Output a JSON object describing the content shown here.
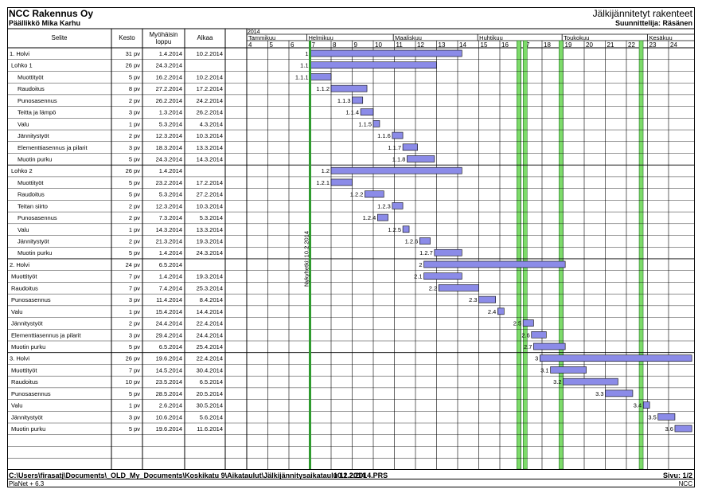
{
  "header": {
    "company": "NCC Rakennus Oy",
    "manager": "Päällikkö Mika Karhu",
    "title": "Jälkijännitetyt rakenteet",
    "planner": "Suunnittelija: Räsänen"
  },
  "footer": {
    "path": "C:\\Users\\firasatj\\Documents\\_OLD_My_Documents\\Koskikatu 9\\Aikataulut\\Jälkijännitysaikataulu 11.2.2014.PRS",
    "date": "10.2.2014",
    "page": "Sivu: 1/2",
    "program": "PlaNet + 6.3",
    "company_short": "NCC"
  },
  "chart_data": {
    "type": "gantt",
    "columns": {
      "task": "Selite",
      "duration": "Kesto",
      "late_end": "Myöhäisin loppu",
      "start": "Alkaa"
    },
    "year": "2014",
    "months": [
      "Tammikuu",
      "Helmikuu",
      "Maaliskuu",
      "Huhtikuu",
      "Toukokuu",
      "Kesäkuu"
    ],
    "weeks": [
      "4",
      "5",
      "6",
      "7",
      "8",
      "9",
      "10",
      "11",
      "12",
      "13",
      "14",
      "15",
      "16",
      "17",
      "18",
      "19",
      "20",
      "21",
      "22",
      "23",
      "24"
    ],
    "today_label": "Nykyhetki: 10.2.2014",
    "rows": [
      {
        "task": "1. Holvi",
        "level": 0,
        "duration": "31 pv",
        "late_end": "1.4.2014",
        "start": "10.2.2014",
        "code": "1",
        "bar": [
          7.0,
          14.2
        ]
      },
      {
        "task": "Lohko 1",
        "level": 1,
        "duration": "26 pv",
        "late_end": "24.3.2014",
        "start": "",
        "code": "1.1",
        "bar": [
          7.0,
          13.0
        ]
      },
      {
        "task": "Muottityöt",
        "level": 2,
        "duration": "5 pv",
        "late_end": "16.2.2014",
        "start": "10.2.2014",
        "code": "1.1.1",
        "bar": [
          7.0,
          8.0
        ]
      },
      {
        "task": "Raudoitus",
        "level": 2,
        "duration": "8 pv",
        "late_end": "27.2.2014",
        "start": "17.2.2014",
        "code": "1.1.2",
        "bar": [
          8.0,
          9.7
        ]
      },
      {
        "task": "Punosasennus",
        "level": 2,
        "duration": "2 pv",
        "late_end": "26.2.2014",
        "start": "24.2.2014",
        "code": "1.1.3",
        "bar": [
          9.0,
          9.5
        ]
      },
      {
        "task": "Teitta ja lämpö",
        "level": 2,
        "duration": "3 pv",
        "late_end": "1.3.2014",
        "start": "26.2.2014",
        "code": "1.1.4",
        "bar": [
          9.4,
          10.0
        ]
      },
      {
        "task": "Valu",
        "level": 2,
        "duration": "1 pv",
        "late_end": "5.3.2014",
        "start": "4.3.2014",
        "code": "1.1.5",
        "bar": [
          10.0,
          10.3
        ]
      },
      {
        "task": "Jännitystyöt",
        "level": 2,
        "duration": "2 pv",
        "late_end": "12.3.2014",
        "start": "10.3.2014",
        "code": "1.1.6",
        "bar": [
          10.9,
          11.4
        ]
      },
      {
        "task": "Elementtiasennus ja pilarit",
        "level": 2,
        "duration": "3 pv",
        "late_end": "18.3.2014",
        "start": "13.3.2014",
        "code": "1.1.7",
        "bar": [
          11.4,
          12.1
        ]
      },
      {
        "task": "Muotin purku",
        "level": 2,
        "duration": "5 pv",
        "late_end": "24.3.2014",
        "start": "14.3.2014",
        "code": "1.1.8",
        "bar": [
          11.6,
          12.9
        ]
      },
      {
        "task": "Lohko 2",
        "level": 1,
        "duration": "26 pv",
        "late_end": "1.4.2014",
        "start": "",
        "code": "1.2",
        "bar": [
          8.0,
          14.2
        ]
      },
      {
        "task": "Muottityöt",
        "level": 2,
        "duration": "5 pv",
        "late_end": "23.2.2014",
        "start": "17.2.2014",
        "code": "1.2.1",
        "bar": [
          8.0,
          9.0
        ]
      },
      {
        "task": "Raudoitus",
        "level": 2,
        "duration": "5 pv",
        "late_end": "5.3.2014",
        "start": "27.2.2014",
        "code": "1.2.2",
        "bar": [
          9.6,
          10.5
        ]
      },
      {
        "task": "Teitan siirto",
        "level": 2,
        "duration": "2 pv",
        "late_end": "12.3.2014",
        "start": "10.3.2014",
        "code": "1.2.3",
        "bar": [
          10.9,
          11.4
        ]
      },
      {
        "task": "Punosasennus",
        "level": 2,
        "duration": "2 pv",
        "late_end": "7.3.2014",
        "start": "5.3.2014",
        "code": "1.2.4",
        "bar": [
          10.2,
          10.7
        ]
      },
      {
        "task": "Valu",
        "level": 2,
        "duration": "1 pv",
        "late_end": "14.3.2014",
        "start": "13.3.2014",
        "code": "1.2.5",
        "bar": [
          11.4,
          11.7
        ]
      },
      {
        "task": "Jännitystyöt",
        "level": 2,
        "duration": "2 pv",
        "late_end": "21.3.2014",
        "start": "19.3.2014",
        "code": "1.2.6",
        "bar": [
          12.2,
          12.7
        ]
      },
      {
        "task": "Muotin purku",
        "level": 2,
        "duration": "5 pv",
        "late_end": "1.4.2014",
        "start": "24.3.2014",
        "code": "1.2.7",
        "bar": [
          12.9,
          14.2
        ]
      },
      {
        "task": "2. Holvi",
        "level": 0,
        "duration": "24 pv",
        "late_end": "6.5.2014",
        "start": "",
        "code": "2",
        "bar": [
          12.4,
          19.1
        ]
      },
      {
        "task": "Muottityöt",
        "level": 1,
        "duration": "7 pv",
        "late_end": "1.4.2014",
        "start": "19.3.2014",
        "code": "2.1",
        "bar": [
          12.4,
          14.2
        ]
      },
      {
        "task": "Raudoitus",
        "level": 1,
        "duration": "7 pv",
        "late_end": "7.4.2014",
        "start": "25.3.2014",
        "code": "2.2",
        "bar": [
          13.1,
          15.0
        ]
      },
      {
        "task": "Punosasennus",
        "level": 1,
        "duration": "3 pv",
        "late_end": "11.4.2014",
        "start": "8.4.2014",
        "code": "2.3",
        "bar": [
          15.0,
          15.8
        ]
      },
      {
        "task": "Valu",
        "level": 1,
        "duration": "1 pv",
        "late_end": "15.4.2014",
        "start": "14.4.2014",
        "code": "2.4",
        "bar": [
          15.9,
          16.2
        ]
      },
      {
        "task": "Jännitystyöt",
        "level": 1,
        "duration": "2 pv",
        "late_end": "24.4.2014",
        "start": "22.4.2014",
        "code": "2.5",
        "bar": [
          17.1,
          17.6
        ]
      },
      {
        "task": "Elementtiasennus ja pilarit",
        "level": 1,
        "duration": "3 pv",
        "late_end": "29.4.2014",
        "start": "24.4.2014",
        "code": "2.6",
        "bar": [
          17.5,
          18.2
        ]
      },
      {
        "task": "Muotin purku",
        "level": 1,
        "duration": "5 pv",
        "late_end": "6.5.2014",
        "start": "25.4.2014",
        "code": "2.7",
        "bar": [
          17.6,
          19.1
        ]
      },
      {
        "task": "3. Holvi",
        "level": 0,
        "duration": "26 pv",
        "late_end": "19.6.2014",
        "start": "22.4.2014",
        "code": "3",
        "bar": [
          17.9,
          25.1
        ]
      },
      {
        "task": "Muottityöt",
        "level": 1,
        "duration": "7 pv",
        "late_end": "14.5.2014",
        "start": "30.4.2014",
        "code": "3.1",
        "bar": [
          18.4,
          20.1
        ]
      },
      {
        "task": "Raudoitus",
        "level": 1,
        "duration": "10 pv",
        "late_end": "23.5.2014",
        "start": "6.5.2014",
        "code": "3.2",
        "bar": [
          19.0,
          21.6
        ]
      },
      {
        "task": "Punosasennus",
        "level": 1,
        "duration": "5 pv",
        "late_end": "28.5.2014",
        "start": "20.5.2014",
        "code": "3.3",
        "bar": [
          21.0,
          22.3
        ]
      },
      {
        "task": "Valu",
        "level": 1,
        "duration": "1 pv",
        "late_end": "2.6.2014",
        "start": "30.5.2014",
        "code": "3.4",
        "bar": [
          22.8,
          23.1
        ]
      },
      {
        "task": "Jännitystyöt",
        "level": 1,
        "duration": "3 pv",
        "late_end": "10.6.2014",
        "start": "5.6.2014",
        "code": "3.5",
        "bar": [
          23.5,
          24.3
        ]
      },
      {
        "task": "Muotin purku",
        "level": 1,
        "duration": "5 pv",
        "late_end": "19.6.2014",
        "start": "11.6.2014",
        "code": "3.6",
        "bar": [
          24.3,
          25.1
        ]
      }
    ],
    "group_dividers_after_rows": [
      9,
      17,
      25
    ],
    "holiday_weeks": [
      16.9,
      17.2,
      18.9,
      22.7
    ],
    "colors": {
      "bar": "#8b8be8",
      "bar_border": "#000000",
      "today": "#2f9b2f",
      "holiday": "#7ddb6a",
      "border": "#000000"
    }
  }
}
